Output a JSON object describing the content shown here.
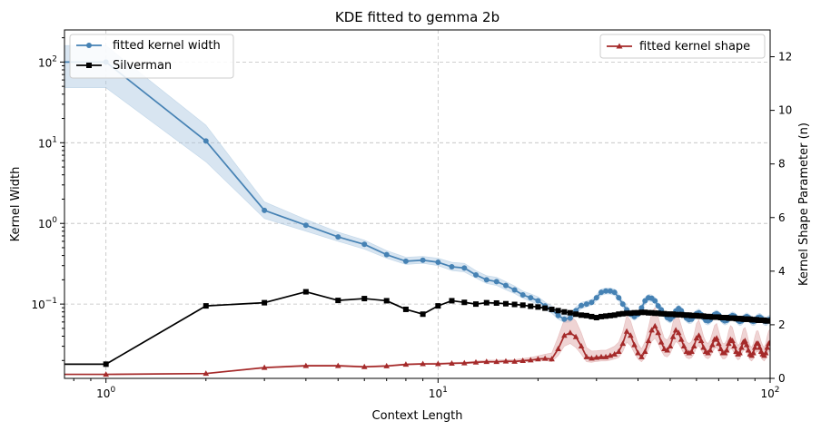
{
  "chart_data": {
    "type": "line",
    "title": "KDE fitted to gemma 2b",
    "xlabel": "Context Length",
    "ylabel_left": "Kernel Width",
    "ylabel_right": "Kernel Shape Parameter (n)",
    "xscale": "log",
    "yscale_left": "log",
    "xlim": [
      0.75,
      100
    ],
    "ylim_left": [
      0.012,
      250
    ],
    "ylim_right": [
      0,
      13
    ],
    "grid": true,
    "x_ticks": [
      {
        "value": 1,
        "base": "10",
        "exp": "0"
      },
      {
        "value": 10,
        "base": "10",
        "exp": "1"
      },
      {
        "value": 100,
        "base": "10",
        "exp": "2"
      }
    ],
    "y_left_ticks": [
      {
        "value": 0.1,
        "base": "10",
        "exp": "−1"
      },
      {
        "value": 1,
        "base": "10",
        "exp": "0"
      },
      {
        "value": 10,
        "base": "10",
        "exp": "1"
      },
      {
        "value": 100,
        "base": "10",
        "exp": "2"
      }
    ],
    "y_right_ticks": [
      {
        "value": 0,
        "label": "0"
      },
      {
        "value": 2,
        "label": "2"
      },
      {
        "value": 4,
        "label": "4"
      },
      {
        "value": 6,
        "label": "6"
      },
      {
        "value": 8,
        "label": "8"
      },
      {
        "value": 10,
        "label": "10"
      },
      {
        "value": 12,
        "label": "12"
      }
    ],
    "legend_left": {
      "placement": "upper-left",
      "entries": [
        "fitted kernel width",
        "Silverman"
      ]
    },
    "legend_right": {
      "placement": "upper-right",
      "entries": [
        "fitted kernel shape"
      ]
    },
    "series": [
      {
        "name": "fitted kernel width",
        "axis": "left",
        "color": "#4682b4",
        "band_color": "#a9c6e0",
        "marker": "circle",
        "x": [
          0.75,
          1,
          2,
          3,
          4,
          5,
          6,
          7,
          8,
          9,
          10,
          11,
          12,
          13,
          14,
          15,
          16,
          17,
          18,
          19,
          20,
          21,
          22,
          23,
          24,
          25,
          26,
          27,
          28,
          29,
          30,
          31,
          32,
          33,
          34,
          35,
          36,
          37,
          38,
          39,
          40,
          41,
          42,
          43,
          44,
          45,
          46,
          47,
          48,
          49,
          50,
          51,
          52,
          53,
          54,
          55,
          56,
          57,
          58,
          59,
          60,
          61,
          62,
          63,
          64,
          65,
          66,
          67,
          68,
          69,
          70,
          71,
          72,
          73,
          74,
          75,
          76,
          77,
          78,
          79,
          80,
          81,
          82,
          83,
          84,
          85,
          86,
          87,
          88,
          89,
          90,
          91,
          92,
          93,
          94,
          95,
          96,
          97,
          98,
          99,
          100
        ],
        "values": [
          100,
          100,
          10.5,
          1.45,
          0.95,
          0.68,
          0.55,
          0.41,
          0.34,
          0.35,
          0.33,
          0.29,
          0.28,
          0.23,
          0.2,
          0.19,
          0.17,
          0.15,
          0.13,
          0.12,
          0.11,
          0.095,
          0.085,
          0.072,
          0.065,
          0.067,
          0.083,
          0.096,
          0.1,
          0.105,
          0.12,
          0.14,
          0.145,
          0.145,
          0.14,
          0.12,
          0.1,
          0.085,
          0.075,
          0.07,
          0.075,
          0.09,
          0.11,
          0.12,
          0.118,
          0.11,
          0.095,
          0.085,
          0.075,
          0.068,
          0.065,
          0.07,
          0.082,
          0.088,
          0.083,
          0.074,
          0.067,
          0.064,
          0.065,
          0.07,
          0.076,
          0.078,
          0.074,
          0.068,
          0.063,
          0.062,
          0.064,
          0.069,
          0.074,
          0.076,
          0.073,
          0.068,
          0.064,
          0.062,
          0.063,
          0.066,
          0.07,
          0.072,
          0.071,
          0.067,
          0.063,
          0.061,
          0.062,
          0.065,
          0.068,
          0.07,
          0.068,
          0.065,
          0.062,
          0.061,
          0.062,
          0.065,
          0.068,
          0.069,
          0.067,
          0.064,
          0.062,
          0.061,
          0.062,
          0.064,
          0.065
        ],
        "band_low": [
          48,
          48,
          5.8,
          1.15,
          0.8,
          0.6,
          0.48,
          0.37,
          0.31,
          0.32,
          0.3,
          0.26,
          0.25,
          0.21,
          0.18,
          0.17,
          0.15,
          0.135,
          0.118,
          0.108,
          0.098,
          0.085,
          0.077,
          0.065,
          0.059,
          0.06,
          0.075,
          0.088,
          0.092,
          0.097,
          0.11,
          0.128,
          0.133,
          0.133,
          0.128,
          0.109,
          0.091,
          0.077,
          0.068,
          0.063,
          0.068,
          0.082,
          0.1,
          0.109,
          0.107,
          0.1,
          0.086,
          0.077,
          0.068,
          0.061,
          0.058,
          0.063,
          0.074,
          0.08,
          0.075,
          0.067,
          0.06,
          0.057,
          0.058,
          0.063,
          0.069,
          0.07,
          0.067,
          0.061,
          0.056,
          0.055,
          0.057,
          0.062,
          0.067,
          0.069,
          0.066,
          0.061,
          0.057,
          0.055,
          0.056,
          0.059,
          0.063,
          0.065,
          0.064,
          0.06,
          0.056,
          0.054,
          0.055,
          0.058,
          0.061,
          0.063,
          0.061,
          0.058,
          0.055,
          0.054,
          0.055,
          0.058,
          0.061,
          0.062,
          0.06,
          0.057,
          0.055,
          0.054,
          0.055,
          0.057,
          0.058
        ],
        "band_high": [
          160,
          160,
          16.5,
          1.85,
          1.12,
          0.78,
          0.62,
          0.46,
          0.38,
          0.39,
          0.37,
          0.33,
          0.32,
          0.26,
          0.225,
          0.215,
          0.19,
          0.168,
          0.145,
          0.134,
          0.123,
          0.106,
          0.095,
          0.081,
          0.073,
          0.075,
          0.092,
          0.105,
          0.109,
          0.114,
          0.131,
          0.153,
          0.158,
          0.158,
          0.153,
          0.132,
          0.11,
          0.094,
          0.083,
          0.078,
          0.083,
          0.099,
          0.121,
          0.132,
          0.13,
          0.121,
          0.105,
          0.094,
          0.083,
          0.076,
          0.073,
          0.078,
          0.091,
          0.097,
          0.092,
          0.082,
          0.075,
          0.072,
          0.073,
          0.078,
          0.084,
          0.087,
          0.082,
          0.076,
          0.071,
          0.07,
          0.072,
          0.077,
          0.082,
          0.084,
          0.081,
          0.076,
          0.072,
          0.07,
          0.071,
          0.074,
          0.078,
          0.08,
          0.079,
          0.075,
          0.071,
          0.069,
          0.07,
          0.073,
          0.076,
          0.078,
          0.076,
          0.073,
          0.07,
          0.069,
          0.07,
          0.073,
          0.076,
          0.077,
          0.075,
          0.072,
          0.07,
          0.069,
          0.07,
          0.072,
          0.073
        ]
      },
      {
        "name": "Silverman",
        "axis": "left",
        "color": "#000000",
        "marker": "square",
        "x": [
          0.75,
          1,
          2,
          3,
          4,
          5,
          6,
          7,
          8,
          9,
          10,
          11,
          12,
          13,
          14,
          15,
          16,
          17,
          18,
          19,
          20,
          21,
          22,
          23,
          24,
          25,
          26,
          27,
          28,
          29,
          30,
          31,
          32,
          33,
          34,
          35,
          36,
          37,
          38,
          39,
          40,
          41,
          42,
          43,
          44,
          45,
          46,
          47,
          48,
          49,
          50,
          51,
          52,
          53,
          54,
          55,
          56,
          57,
          58,
          59,
          60,
          61,
          62,
          63,
          64,
          65,
          66,
          67,
          68,
          69,
          70,
          71,
          72,
          73,
          74,
          75,
          76,
          77,
          78,
          79,
          80,
          81,
          82,
          83,
          84,
          85,
          86,
          87,
          88,
          89,
          90,
          91,
          92,
          93,
          94,
          95,
          96,
          97,
          98,
          99,
          100
        ],
        "values": [
          0.018,
          0.018,
          0.095,
          0.104,
          0.142,
          0.111,
          0.117,
          0.11,
          0.086,
          0.075,
          0.095,
          0.11,
          0.105,
          0.1,
          0.104,
          0.103,
          0.101,
          0.099,
          0.097,
          0.094,
          0.092,
          0.089,
          0.086,
          0.083,
          0.08,
          0.078,
          0.075,
          0.073,
          0.072,
          0.07,
          0.068,
          0.07,
          0.071,
          0.072,
          0.073,
          0.075,
          0.076,
          0.077,
          0.077,
          0.078,
          0.078,
          0.079,
          0.079,
          0.078,
          0.078,
          0.077,
          0.077,
          0.076,
          0.076,
          0.075,
          0.075,
          0.075,
          0.074,
          0.074,
          0.074,
          0.073,
          0.073,
          0.073,
          0.072,
          0.072,
          0.072,
          0.071,
          0.071,
          0.071,
          0.07,
          0.07,
          0.07,
          0.069,
          0.069,
          0.069,
          0.069,
          0.068,
          0.068,
          0.068,
          0.068,
          0.067,
          0.067,
          0.067,
          0.067,
          0.066,
          0.066,
          0.066,
          0.066,
          0.065,
          0.065,
          0.065,
          0.065,
          0.065,
          0.064,
          0.064,
          0.064,
          0.064,
          0.063,
          0.063,
          0.063,
          0.063,
          0.063,
          0.062,
          0.062,
          0.062,
          0.062
        ]
      },
      {
        "name": "fitted kernel shape",
        "axis": "right",
        "color": "#a52a2a",
        "band_color": "#dca0a0",
        "marker": "triangle",
        "x": [
          0.75,
          1,
          2,
          3,
          4,
          5,
          6,
          7,
          8,
          9,
          10,
          11,
          12,
          13,
          14,
          15,
          16,
          17,
          18,
          19,
          20,
          21,
          22,
          23,
          24,
          25,
          26,
          27,
          28,
          29,
          30,
          31,
          32,
          33,
          34,
          35,
          36,
          37,
          38,
          39,
          40,
          41,
          42,
          43,
          44,
          45,
          46,
          47,
          48,
          49,
          50,
          51,
          52,
          53,
          54,
          55,
          56,
          57,
          58,
          59,
          60,
          61,
          62,
          63,
          64,
          65,
          66,
          67,
          68,
          69,
          70,
          71,
          72,
          73,
          74,
          75,
          76,
          77,
          78,
          79,
          80,
          81,
          82,
          83,
          84,
          85,
          86,
          87,
          88,
          89,
          90,
          91,
          92,
          93,
          94,
          95,
          96,
          97,
          98,
          99,
          100
        ],
        "values": [
          0.15,
          0.15,
          0.18,
          0.4,
          0.47,
          0.47,
          0.43,
          0.46,
          0.52,
          0.54,
          0.54,
          0.56,
          0.57,
          0.6,
          0.62,
          0.62,
          0.64,
          0.63,
          0.66,
          0.68,
          0.72,
          0.74,
          0.72,
          1.1,
          1.6,
          1.7,
          1.55,
          1.2,
          0.8,
          0.75,
          0.78,
          0.8,
          0.8,
          0.85,
          0.9,
          1.0,
          1.3,
          1.75,
          1.6,
          1.25,
          0.95,
          0.8,
          1.0,
          1.4,
          1.8,
          1.95,
          1.7,
          1.35,
          1.1,
          1.05,
          1.2,
          1.55,
          1.8,
          1.7,
          1.45,
          1.2,
          1.0,
          0.95,
          1.0,
          1.2,
          1.5,
          1.6,
          1.4,
          1.15,
          1.0,
          0.95,
          1.05,
          1.25,
          1.45,
          1.5,
          1.3,
          1.1,
          0.95,
          0.95,
          1.05,
          1.3,
          1.45,
          1.4,
          1.2,
          1.0,
          0.9,
          0.95,
          1.15,
          1.35,
          1.4,
          1.25,
          1.05,
          0.9,
          0.85,
          0.95,
          1.15,
          1.3,
          1.3,
          1.15,
          1.0,
          0.9,
          0.85,
          0.95,
          1.15,
          1.3,
          1.35
        ],
        "band_low": [
          0.15,
          0.15,
          0.17,
          0.38,
          0.45,
          0.45,
          0.41,
          0.44,
          0.5,
          0.52,
          0.52,
          0.54,
          0.55,
          0.57,
          0.59,
          0.59,
          0.61,
          0.6,
          0.62,
          0.63,
          0.66,
          0.67,
          0.62,
          0.85,
          1.2,
          1.3,
          1.15,
          0.9,
          0.62,
          0.6,
          0.63,
          0.65,
          0.65,
          0.68,
          0.72,
          0.78,
          1.0,
          1.35,
          1.22,
          0.95,
          0.72,
          0.62,
          0.77,
          1.07,
          1.38,
          1.5,
          1.3,
          1.03,
          0.84,
          0.8,
          0.92,
          1.18,
          1.38,
          1.3,
          1.11,
          0.92,
          0.77,
          0.73,
          0.77,
          0.92,
          1.15,
          1.22,
          1.07,
          0.88,
          0.77,
          0.73,
          0.8,
          0.96,
          1.11,
          1.15,
          1.0,
          0.84,
          0.73,
          0.73,
          0.8,
          1.0,
          1.11,
          1.07,
          0.92,
          0.77,
          0.69,
          0.73,
          0.88,
          1.03,
          1.07,
          0.96,
          0.8,
          0.69,
          0.65,
          0.73,
          0.88,
          1.0,
          1.0,
          0.88,
          0.77,
          0.69,
          0.65,
          0.73,
          0.88,
          1.0,
          1.03
        ],
        "band_high": [
          0.16,
          0.16,
          0.2,
          0.43,
          0.5,
          0.5,
          0.46,
          0.49,
          0.55,
          0.57,
          0.58,
          0.6,
          0.61,
          0.65,
          0.68,
          0.68,
          0.7,
          0.7,
          0.74,
          0.78,
          0.84,
          0.9,
          0.95,
          1.55,
          2.2,
          2.35,
          2.15,
          1.7,
          1.15,
          1.02,
          1.03,
          1.05,
          1.05,
          1.12,
          1.2,
          1.35,
          1.75,
          2.35,
          2.15,
          1.7,
          1.3,
          1.1,
          1.37,
          1.9,
          2.45,
          2.65,
          2.3,
          1.85,
          1.5,
          1.43,
          1.63,
          2.1,
          2.45,
          2.3,
          1.97,
          1.63,
          1.37,
          1.3,
          1.37,
          1.63,
          2.05,
          2.18,
          1.9,
          1.57,
          1.37,
          1.3,
          1.43,
          1.7,
          1.97,
          2.05,
          1.77,
          1.5,
          1.3,
          1.3,
          1.43,
          1.77,
          1.97,
          1.9,
          1.63,
          1.37,
          1.23,
          1.3,
          1.57,
          1.84,
          1.9,
          1.7,
          1.43,
          1.23,
          1.16,
          1.3,
          1.57,
          1.77,
          1.77,
          1.57,
          1.37,
          1.23,
          1.16,
          1.3,
          1.57,
          1.77,
          1.84
        ]
      }
    ]
  }
}
